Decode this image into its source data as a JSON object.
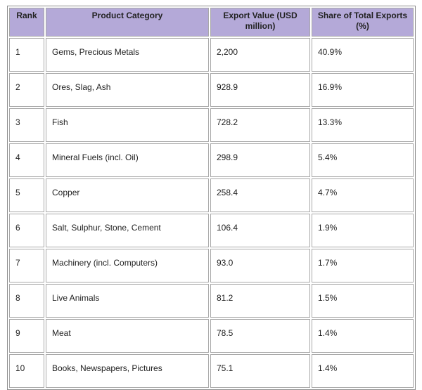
{
  "table": {
    "header": [
      "Rank",
      "Product Category",
      "Export Value (USD million)",
      "Share of Total Exports (%)"
    ],
    "rows": [
      [
        "1",
        "Gems, Precious Metals",
        "2,200",
        "40.9%"
      ],
      [
        "2",
        "Ores, Slag, Ash",
        "928.9",
        "16.9%"
      ],
      [
        "3",
        "Fish",
        "728.2",
        "13.3%"
      ],
      [
        "4",
        "Mineral Fuels (incl. Oil)",
        "298.9",
        "5.4%"
      ],
      [
        "5",
        "Copper",
        "258.4",
        "4.7%"
      ],
      [
        "6",
        "Salt, Sulphur, Stone, Cement",
        "106.4",
        "1.9%"
      ],
      [
        "7",
        "Machinery (incl. Computers)",
        "93.0",
        "1.7%"
      ],
      [
        "8",
        "Live Animals",
        "81.2",
        "1.5%"
      ],
      [
        "9",
        "Meat",
        "78.5",
        "1.4%"
      ],
      [
        "10",
        "Books, Newspapers, Pictures",
        "75.1",
        "1.4%"
      ]
    ]
  }
}
